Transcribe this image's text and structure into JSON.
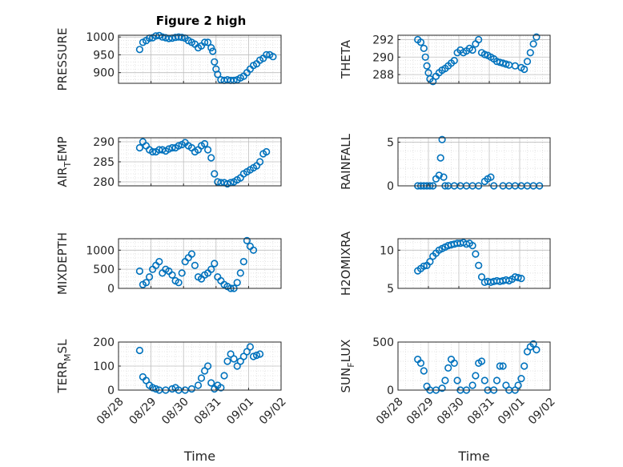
{
  "figure": {
    "title": "Figure 2 high",
    "colors": {
      "marker": "#0072BD",
      "axis": "#262626",
      "grid": "#bfbfbf",
      "minor_grid": "#dedede"
    }
  },
  "chart_data": [
    {
      "type": "scatter",
      "title": "Figure 2 high",
      "ylabel_main": "PRESSURE",
      "ylabel_sub": "",
      "ylim": [
        870,
        1005
      ],
      "yticks": [
        900,
        950,
        1000
      ],
      "xlabel": "",
      "xticklabels": [],
      "grid": true,
      "points": [
        [
          0,
          965
        ],
        [
          0.1,
          985
        ],
        [
          0.2,
          990
        ],
        [
          0.3,
          997
        ],
        [
          0.4,
          998
        ],
        [
          0.5,
          1003
        ],
        [
          0.6,
          1004
        ],
        [
          0.7,
          1000
        ],
        [
          0.8,
          998
        ],
        [
          0.9,
          996
        ],
        [
          1.0,
          997
        ],
        [
          1.1,
          999
        ],
        [
          1.2,
          1000
        ],
        [
          1.3,
          999
        ],
        [
          1.4,
          997
        ],
        [
          1.5,
          990
        ],
        [
          1.6,
          985
        ],
        [
          1.7,
          980
        ],
        [
          1.8,
          970
        ],
        [
          1.9,
          975
        ],
        [
          2.0,
          985
        ],
        [
          2.1,
          985
        ],
        [
          2.2,
          970
        ],
        [
          2.25,
          960
        ],
        [
          2.3,
          930
        ],
        [
          2.35,
          910
        ],
        [
          2.4,
          895
        ],
        [
          2.5,
          880
        ],
        [
          2.6,
          878
        ],
        [
          2.7,
          880
        ],
        [
          2.8,
          878
        ],
        [
          2.9,
          878
        ],
        [
          3.0,
          880
        ],
        [
          3.1,
          885
        ],
        [
          3.2,
          890
        ],
        [
          3.3,
          900
        ],
        [
          3.4,
          910
        ],
        [
          3.5,
          920
        ],
        [
          3.6,
          925
        ],
        [
          3.7,
          935
        ],
        [
          3.8,
          940
        ],
        [
          3.9,
          950
        ],
        [
          4.0,
          950
        ],
        [
          4.1,
          945
        ]
      ]
    },
    {
      "type": "scatter",
      "title": "",
      "ylabel_main": "THETA",
      "ylabel_sub": "",
      "ylim": [
        287,
        292.5
      ],
      "yticks": [
        288,
        290,
        292
      ],
      "xlabel": "",
      "xticklabels": [],
      "grid": true,
      "points": [
        [
          0,
          292
        ],
        [
          0.1,
          291.7
        ],
        [
          0.2,
          291
        ],
        [
          0.25,
          290
        ],
        [
          0.3,
          289
        ],
        [
          0.35,
          288.2
        ],
        [
          0.4,
          287.5
        ],
        [
          0.5,
          287.2
        ],
        [
          0.6,
          287.8
        ],
        [
          0.7,
          288.2
        ],
        [
          0.8,
          288.5
        ],
        [
          0.9,
          288.7
        ],
        [
          1.0,
          289
        ],
        [
          1.1,
          289.3
        ],
        [
          1.2,
          289.6
        ],
        [
          1.3,
          290.5
        ],
        [
          1.4,
          290.8
        ],
        [
          1.5,
          290.5
        ],
        [
          1.6,
          290.7
        ],
        [
          1.7,
          291
        ],
        [
          1.8,
          290.8
        ],
        [
          1.9,
          291.5
        ],
        [
          2.0,
          292
        ],
        [
          2.1,
          290.5
        ],
        [
          2.2,
          290.3
        ],
        [
          2.3,
          290.2
        ],
        [
          2.4,
          290
        ],
        [
          2.5,
          289.8
        ],
        [
          2.6,
          289.5
        ],
        [
          2.7,
          289.4
        ],
        [
          2.8,
          289.3
        ],
        [
          2.9,
          289.2
        ],
        [
          3.0,
          289.1
        ],
        [
          3.2,
          289
        ],
        [
          3.4,
          288.8
        ],
        [
          3.5,
          288.6
        ],
        [
          3.6,
          289.5
        ],
        [
          3.7,
          290.5
        ],
        [
          3.8,
          291.5
        ],
        [
          3.9,
          292.3
        ]
      ]
    },
    {
      "type": "scatter",
      "title": "",
      "ylabel_main": "AIR",
      "ylabel_sub": "T",
      "ylabel_tail": "EMP",
      "ylim": [
        279,
        291
      ],
      "yticks": [
        280,
        285,
        290
      ],
      "xlabel": "",
      "xticklabels": [],
      "grid": true,
      "points": [
        [
          0,
          288.5
        ],
        [
          0.1,
          290
        ],
        [
          0.2,
          289
        ],
        [
          0.3,
          288
        ],
        [
          0.4,
          287.5
        ],
        [
          0.5,
          287.5
        ],
        [
          0.6,
          288
        ],
        [
          0.7,
          288
        ],
        [
          0.8,
          287.7
        ],
        [
          0.9,
          288.2
        ],
        [
          1.0,
          288.5
        ],
        [
          1.1,
          288.5
        ],
        [
          1.2,
          289
        ],
        [
          1.3,
          289.3
        ],
        [
          1.4,
          289.8
        ],
        [
          1.5,
          289
        ],
        [
          1.6,
          288.5
        ],
        [
          1.7,
          287.5
        ],
        [
          1.8,
          288
        ],
        [
          1.9,
          289
        ],
        [
          2.0,
          289.5
        ],
        [
          2.1,
          288
        ],
        [
          2.2,
          286
        ],
        [
          2.3,
          282
        ],
        [
          2.4,
          280
        ],
        [
          2.5,
          279.8
        ],
        [
          2.6,
          279.8
        ],
        [
          2.7,
          279.5
        ],
        [
          2.8,
          279.8
        ],
        [
          2.9,
          280
        ],
        [
          3.0,
          280.5
        ],
        [
          3.1,
          281
        ],
        [
          3.2,
          282
        ],
        [
          3.3,
          282.5
        ],
        [
          3.4,
          283
        ],
        [
          3.5,
          283.5
        ],
        [
          3.6,
          284
        ],
        [
          3.7,
          285
        ],
        [
          3.8,
          287
        ],
        [
          3.9,
          287.5
        ]
      ]
    },
    {
      "type": "scatter",
      "title": "",
      "ylabel_main": "RAINFALL",
      "ylabel_sub": "",
      "ylim": [
        0,
        5.5
      ],
      "yticks": [
        0,
        5
      ],
      "xlabel": "",
      "xticklabels": [],
      "grid": true,
      "points": [
        [
          0,
          0
        ],
        [
          0.1,
          0
        ],
        [
          0.2,
          0
        ],
        [
          0.3,
          0
        ],
        [
          0.4,
          0
        ],
        [
          0.5,
          0
        ],
        [
          0.6,
          0.8
        ],
        [
          0.7,
          1.2
        ],
        [
          0.75,
          3.2
        ],
        [
          0.8,
          5.3
        ],
        [
          0.85,
          1.0
        ],
        [
          0.9,
          0
        ],
        [
          1.0,
          0
        ],
        [
          1.2,
          0
        ],
        [
          1.4,
          0
        ],
        [
          1.6,
          0
        ],
        [
          1.8,
          0
        ],
        [
          2.0,
          0
        ],
        [
          2.2,
          0.5
        ],
        [
          2.3,
          0.8
        ],
        [
          2.4,
          1.0
        ],
        [
          2.5,
          0
        ],
        [
          2.8,
          0
        ],
        [
          3.0,
          0
        ],
        [
          3.2,
          0
        ],
        [
          3.4,
          0
        ],
        [
          3.6,
          0
        ],
        [
          3.8,
          0
        ],
        [
          4.0,
          0
        ]
      ]
    },
    {
      "type": "scatter",
      "title": "",
      "ylabel_main": "MIXDEPTH",
      "ylabel_sub": "",
      "ylim": [
        0,
        1300
      ],
      "yticks": [
        0,
        500,
        1000
      ],
      "xlabel": "",
      "xticklabels": [],
      "grid": true,
      "points": [
        [
          0,
          450
        ],
        [
          0.1,
          100
        ],
        [
          0.2,
          150
        ],
        [
          0.3,
          300
        ],
        [
          0.4,
          500
        ],
        [
          0.5,
          600
        ],
        [
          0.6,
          700
        ],
        [
          0.7,
          400
        ],
        [
          0.8,
          500
        ],
        [
          0.9,
          450
        ],
        [
          1.0,
          350
        ],
        [
          1.1,
          200
        ],
        [
          1.2,
          150
        ],
        [
          1.3,
          400
        ],
        [
          1.4,
          700
        ],
        [
          1.5,
          800
        ],
        [
          1.6,
          900
        ],
        [
          1.7,
          600
        ],
        [
          1.8,
          300
        ],
        [
          1.9,
          250
        ],
        [
          2.0,
          350
        ],
        [
          2.1,
          400
        ],
        [
          2.2,
          500
        ],
        [
          2.3,
          650
        ],
        [
          2.4,
          300
        ],
        [
          2.5,
          200
        ],
        [
          2.6,
          100
        ],
        [
          2.7,
          50
        ],
        [
          2.8,
          0
        ],
        [
          2.9,
          0
        ],
        [
          3.0,
          150
        ],
        [
          3.1,
          400
        ],
        [
          3.2,
          700
        ],
        [
          3.3,
          1250
        ],
        [
          3.4,
          1100
        ],
        [
          3.5,
          1000
        ]
      ]
    },
    {
      "type": "scatter",
      "title": "",
      "ylabel_main": "H2OMIXRA",
      "ylabel_sub": "",
      "ylim": [
        5,
        11.5
      ],
      "yticks": [
        5,
        10
      ],
      "xlabel": "",
      "xticklabels": [],
      "grid": true,
      "points": [
        [
          0,
          7.3
        ],
        [
          0.1,
          7.6
        ],
        [
          0.2,
          7.9
        ],
        [
          0.3,
          8.0
        ],
        [
          0.4,
          8.5
        ],
        [
          0.5,
          9.2
        ],
        [
          0.6,
          9.6
        ],
        [
          0.7,
          10.0
        ],
        [
          0.8,
          10.2
        ],
        [
          0.9,
          10.4
        ],
        [
          1.0,
          10.6
        ],
        [
          1.1,
          10.7
        ],
        [
          1.2,
          10.8
        ],
        [
          1.3,
          10.9
        ],
        [
          1.4,
          10.9
        ],
        [
          1.5,
          11.0
        ],
        [
          1.6,
          10.8
        ],
        [
          1.7,
          10.9
        ],
        [
          1.8,
          10.6
        ],
        [
          1.9,
          9.5
        ],
        [
          2.0,
          8.0
        ],
        [
          2.1,
          6.5
        ],
        [
          2.2,
          5.8
        ],
        [
          2.3,
          5.9
        ],
        [
          2.4,
          5.8
        ],
        [
          2.5,
          5.9
        ],
        [
          2.6,
          6.0
        ],
        [
          2.7,
          5.9
        ],
        [
          2.8,
          6.0
        ],
        [
          2.9,
          6.1
        ],
        [
          3.0,
          6.0
        ],
        [
          3.1,
          6.2
        ],
        [
          3.2,
          6.5
        ],
        [
          3.3,
          6.4
        ],
        [
          3.4,
          6.3
        ]
      ]
    },
    {
      "type": "scatter",
      "title": "",
      "ylabel_main": "TERR",
      "ylabel_sub": "M",
      "ylabel_tail": "SL",
      "ylim": [
        0,
        200
      ],
      "yticks": [
        0,
        100,
        200
      ],
      "xlabel": "Time",
      "xticklabels": [
        "08/28",
        "08/29",
        "08/30",
        "08/31",
        "09/01",
        "09/02"
      ],
      "grid": true,
      "points": [
        [
          0,
          165
        ],
        [
          0.1,
          55
        ],
        [
          0.2,
          40
        ],
        [
          0.3,
          20
        ],
        [
          0.4,
          10
        ],
        [
          0.5,
          5
        ],
        [
          0.6,
          0
        ],
        [
          0.8,
          0
        ],
        [
          1.0,
          5
        ],
        [
          1.1,
          10
        ],
        [
          1.2,
          0
        ],
        [
          1.4,
          0
        ],
        [
          1.6,
          5
        ],
        [
          1.8,
          20
        ],
        [
          1.9,
          50
        ],
        [
          2.0,
          80
        ],
        [
          2.1,
          100
        ],
        [
          2.2,
          30
        ],
        [
          2.3,
          5
        ],
        [
          2.4,
          20
        ],
        [
          2.5,
          10
        ],
        [
          2.6,
          60
        ],
        [
          2.7,
          120
        ],
        [
          2.8,
          150
        ],
        [
          2.9,
          130
        ],
        [
          3.0,
          100
        ],
        [
          3.1,
          120
        ],
        [
          3.2,
          140
        ],
        [
          3.3,
          160
        ],
        [
          3.4,
          180
        ],
        [
          3.5,
          140
        ],
        [
          3.6,
          145
        ],
        [
          3.7,
          150
        ]
      ]
    },
    {
      "type": "scatter",
      "title": "",
      "ylabel_main": "SUN",
      "ylabel_sub": "F",
      "ylabel_tail": "LUX",
      "ylim": [
        0,
        500
      ],
      "yticks": [
        0,
        500
      ],
      "xlabel": "Time",
      "xticklabels": [
        "08/28",
        "08/29",
        "08/30",
        "08/31",
        "09/01",
        "09/02"
      ],
      "grid": true,
      "points": [
        [
          0,
          320
        ],
        [
          0.1,
          280
        ],
        [
          0.2,
          200
        ],
        [
          0.3,
          40
        ],
        [
          0.4,
          0
        ],
        [
          0.6,
          0
        ],
        [
          0.8,
          20
        ],
        [
          0.9,
          100
        ],
        [
          1.0,
          230
        ],
        [
          1.1,
          320
        ],
        [
          1.2,
          280
        ],
        [
          1.3,
          100
        ],
        [
          1.4,
          0
        ],
        [
          1.6,
          0
        ],
        [
          1.8,
          50
        ],
        [
          1.9,
          150
        ],
        [
          2.0,
          280
        ],
        [
          2.1,
          300
        ],
        [
          2.2,
          100
        ],
        [
          2.3,
          0
        ],
        [
          2.5,
          0
        ],
        [
          2.6,
          100
        ],
        [
          2.7,
          250
        ],
        [
          2.8,
          250
        ],
        [
          2.9,
          50
        ],
        [
          3.0,
          0
        ],
        [
          3.2,
          0
        ],
        [
          3.3,
          50
        ],
        [
          3.4,
          120
        ],
        [
          3.5,
          250
        ],
        [
          3.6,
          400
        ],
        [
          3.7,
          450
        ],
        [
          3.8,
          480
        ],
        [
          3.9,
          420
        ]
      ]
    }
  ]
}
